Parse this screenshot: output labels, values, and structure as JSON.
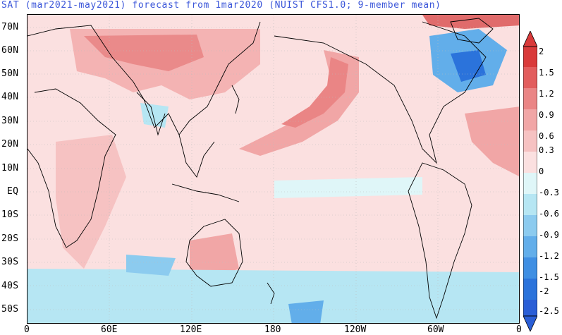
{
  "title": "SAT (mar2021-may2021) forecast from 1mar2020 (NUIST CFS1.0; 9-member mean)",
  "lat_labels": [
    "70N",
    "60N",
    "50N",
    "40N",
    "30N",
    "20N",
    "10N",
    "EQ",
    "10S",
    "20S",
    "30S",
    "40S",
    "50S"
  ],
  "lon_labels": [
    "0",
    "60E",
    "120E",
    "180",
    "120W",
    "60W",
    "0"
  ],
  "colorbar": {
    "labels": [
      "2",
      "1.5",
      "1.2",
      "0.9",
      "0.6",
      "0.3",
      "0",
      "-0.3",
      "-0.6",
      "-0.9",
      "-1.2",
      "-1.5",
      "-2",
      "-2.5"
    ],
    "colors": [
      "#d93a3a",
      "#e25d5d",
      "#ea8585",
      "#f1a6a6",
      "#f6c2c2",
      "#fbe0e0",
      "#dff6f8",
      "#b6e6f3",
      "#8ccbef",
      "#62aeea",
      "#3f8fe3",
      "#2b73db",
      "#2a5ed6"
    ]
  }
}
